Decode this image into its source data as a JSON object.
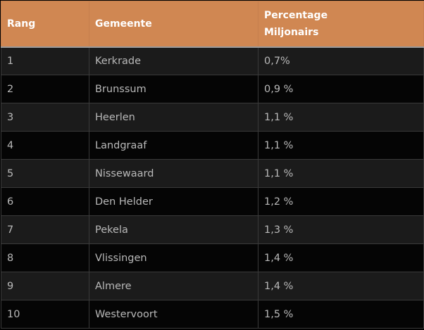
{
  "table": {
    "headers": {
      "rank": "Rang",
      "municipality": "Gemeente",
      "percentage_line1": "Percentage",
      "percentage_line2": "Miljonairs"
    },
    "rows": [
      {
        "rank": "1",
        "municipality": "Kerkrade",
        "percentage": "0,7%"
      },
      {
        "rank": "2",
        "municipality": "Brunssum",
        "percentage": "0,9 %"
      },
      {
        "rank": "3",
        "municipality": "Heerlen",
        "percentage": "1,1 %"
      },
      {
        "rank": "4",
        "municipality": "Landgraaf",
        "percentage": "1,1 %"
      },
      {
        "rank": "5",
        "municipality": "Nissewaard",
        "percentage": "1,1 %"
      },
      {
        "rank": "6",
        "municipality": "Den Helder",
        "percentage": "1,2 %"
      },
      {
        "rank": "7",
        "municipality": "Pekela",
        "percentage": "1,3 %"
      },
      {
        "rank": "8",
        "municipality": "Vlissingen",
        "percentage": "1,4 %"
      },
      {
        "rank": "9",
        "municipality": "Almere",
        "percentage": "1,4 %"
      },
      {
        "rank": "10",
        "municipality": "Westervoort",
        "percentage": "1,5 %"
      }
    ]
  },
  "colors": {
    "header_background": "#d08752",
    "header_text": "#ffffff",
    "row_odd": "#1b1b1b",
    "row_even": "#050505",
    "cell_text": "#b9b9b9"
  }
}
